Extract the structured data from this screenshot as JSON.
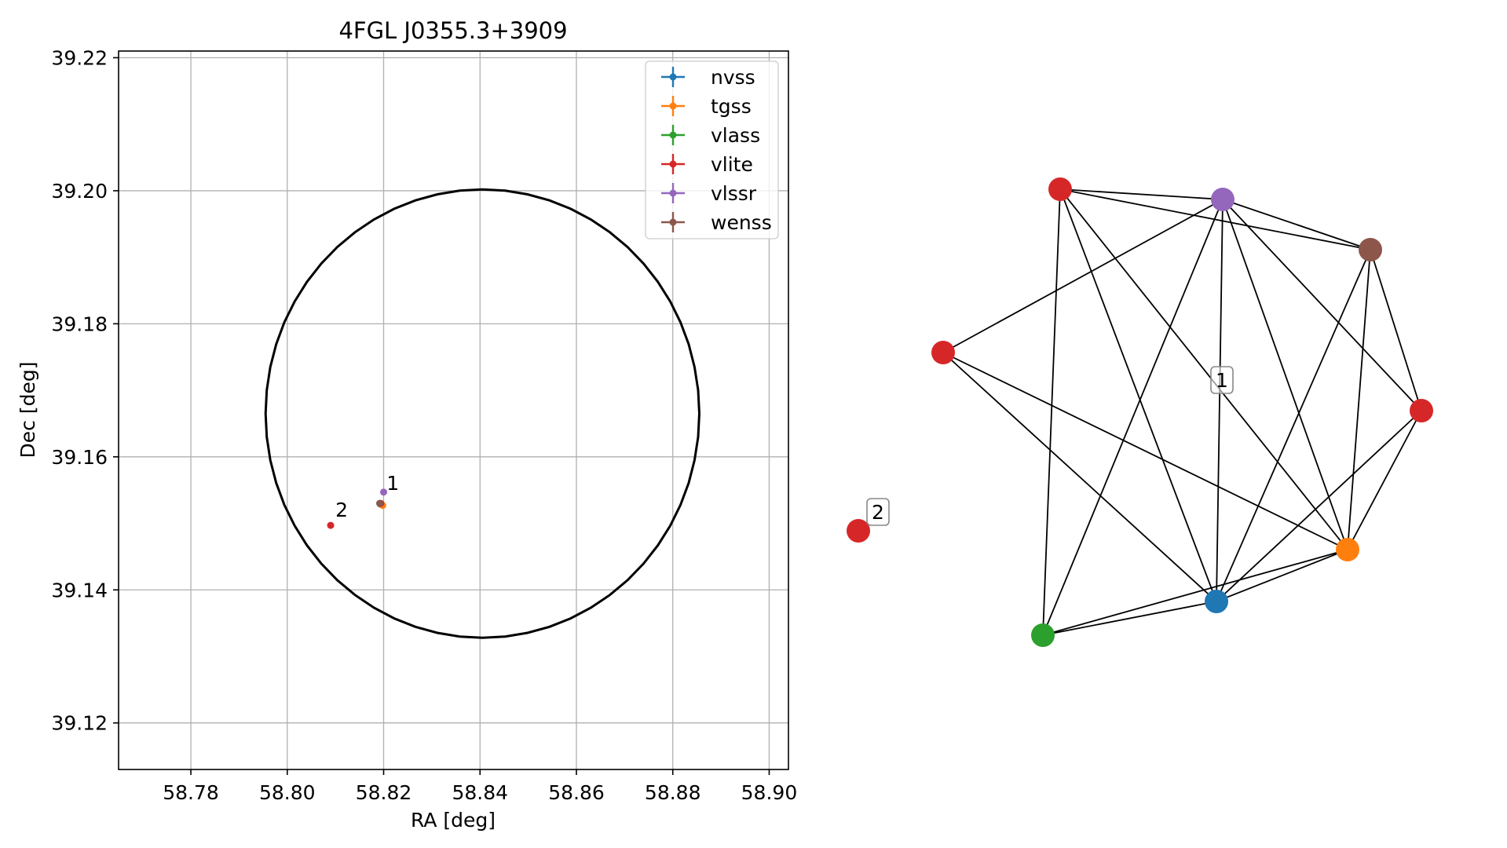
{
  "chart_data": [
    {
      "type": "scatter",
      "title": "4FGL J0355.3+3909",
      "xlabel": "RA [deg]",
      "ylabel": "Dec [deg]",
      "xlim": [
        58.765,
        58.904
      ],
      "ylim": [
        39.113,
        39.221
      ],
      "xticks": [
        "58.78",
        "58.80",
        "58.82",
        "58.84",
        "58.86",
        "58.88",
        "58.90"
      ],
      "yticks": [
        "39.12",
        "39.14",
        "39.16",
        "39.18",
        "39.20",
        "39.22"
      ],
      "grid": true,
      "legend_position": "top-right",
      "ellipse": {
        "center_ra": 58.8405,
        "center_dec": 39.1665,
        "ra_radius": 0.045,
        "dec_radius": 0.0337,
        "color": "#000000"
      },
      "series": [
        {
          "name": "nvss",
          "color": "#1f77b4",
          "points": [
            {
              "ra": 58.8193,
              "dec": 39.1529
            }
          ]
        },
        {
          "name": "tgss",
          "color": "#ff7f0e",
          "points": [
            {
              "ra": 58.8198,
              "dec": 39.1527
            }
          ]
        },
        {
          "name": "vlass",
          "color": "#2ca02c",
          "points": [
            {
              "ra": 58.8192,
              "dec": 39.153
            }
          ]
        },
        {
          "name": "vlite",
          "color": "#d62728",
          "points": [
            {
              "ra": 58.8194,
              "dec": 39.153
            },
            {
              "ra": 58.809,
              "dec": 39.1497
            }
          ]
        },
        {
          "name": "vlssr",
          "color": "#9467bd",
          "points": [
            {
              "ra": 58.82,
              "dec": 39.1547
            }
          ]
        },
        {
          "name": "wenss",
          "color": "#8c564b",
          "points": [
            {
              "ra": 58.8192,
              "dec": 39.153
            }
          ]
        }
      ],
      "annotations": [
        {
          "text": "1",
          "ra": 58.8206,
          "dec": 39.155
        },
        {
          "text": "2",
          "ra": 58.81,
          "dec": 39.151
        }
      ]
    },
    {
      "type": "network",
      "nodes": [
        {
          "id": "vlite_a",
          "color": "#d62728"
        },
        {
          "id": "vlssr",
          "color": "#9467bd"
        },
        {
          "id": "wenss",
          "color": "#8c564b"
        },
        {
          "id": "vlite_b",
          "color": "#d62728"
        },
        {
          "id": "vlite_c",
          "color": "#d62728"
        },
        {
          "id": "tgss",
          "color": "#ff7f0e"
        },
        {
          "id": "nvss",
          "color": "#1f77b4"
        },
        {
          "id": "vlass",
          "color": "#2ca02c"
        },
        {
          "id": "vlite_iso",
          "color": "#d62728"
        }
      ],
      "edges": [
        [
          "vlite_a",
          "vlssr"
        ],
        [
          "vlite_a",
          "wenss"
        ],
        [
          "vlite_a",
          "tgss"
        ],
        [
          "vlite_a",
          "nvss"
        ],
        [
          "vlite_a",
          "vlass"
        ],
        [
          "vlssr",
          "wenss"
        ],
        [
          "vlssr",
          "vlite_b"
        ],
        [
          "vlssr",
          "vlite_c"
        ],
        [
          "vlssr",
          "tgss"
        ],
        [
          "vlssr",
          "nvss"
        ],
        [
          "vlssr",
          "vlass"
        ],
        [
          "wenss",
          "vlite_c"
        ],
        [
          "wenss",
          "tgss"
        ],
        [
          "wenss",
          "nvss"
        ],
        [
          "vlite_b",
          "tgss"
        ],
        [
          "vlite_b",
          "nvss"
        ],
        [
          "vlite_c",
          "tgss"
        ],
        [
          "vlite_c",
          "nvss"
        ],
        [
          "tgss",
          "nvss"
        ],
        [
          "tgss",
          "vlass"
        ],
        [
          "nvss",
          "vlass"
        ]
      ],
      "labels": [
        {
          "text": "1",
          "group": "connected"
        },
        {
          "text": "2",
          "group": "isolated"
        }
      ]
    }
  ]
}
